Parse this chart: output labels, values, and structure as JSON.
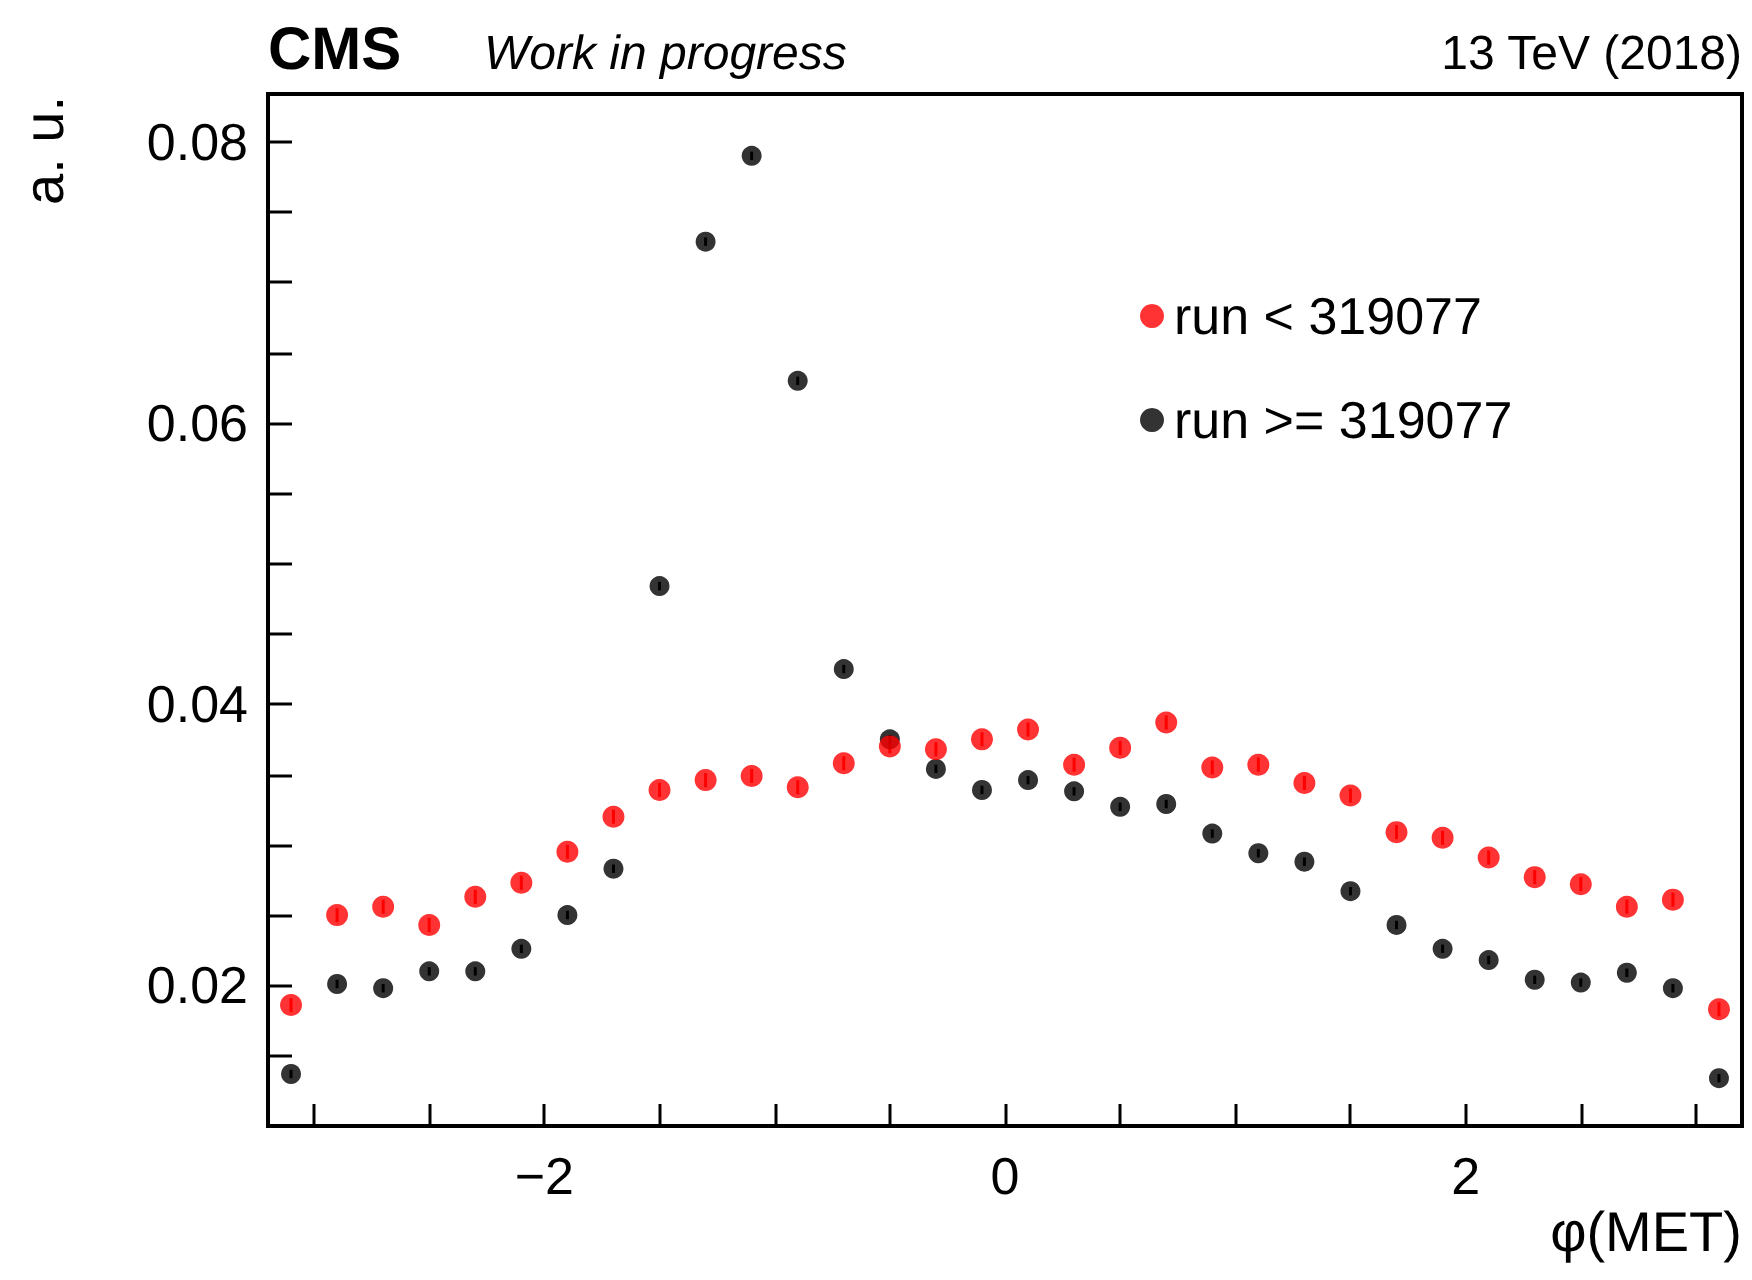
{
  "chart_data": {
    "type": "scatter",
    "title": "CMS",
    "subtitle": "Work in progress",
    "annotations": [
      "13 TeV (2018)"
    ],
    "xlabel": "φ(MET)",
    "ylabel": "a. u.",
    "x": [
      -3.1,
      -2.9,
      -2.7,
      -2.5,
      -2.3,
      -2.1,
      -1.9,
      -1.7,
      -1.5,
      -1.3,
      -1.1,
      -0.9,
      -0.7,
      -0.5,
      -0.3,
      -0.1,
      0.1,
      0.3,
      0.5,
      0.7,
      0.9,
      1.1,
      1.3,
      1.5,
      1.7,
      1.9,
      2.1,
      2.3,
      2.5,
      2.7,
      2.9,
      3.1
    ],
    "series": [
      {
        "name": "run < 319077",
        "color": "#ff0000",
        "values": [
          0.0186,
          0.025,
          0.0256,
          0.0243,
          0.0263,
          0.0273,
          0.0295,
          0.032,
          0.0339,
          0.0346,
          0.0349,
          0.0341,
          0.0358,
          0.037,
          0.0368,
          0.0375,
          0.0382,
          0.0357,
          0.0369,
          0.0387,
          0.0355,
          0.0357,
          0.0344,
          0.0335,
          0.0309,
          0.0305,
          0.0291,
          0.0277,
          0.0272,
          0.0256,
          0.0261,
          0.0183
        ],
        "errors": [
          0.0005,
          0.0005,
          0.0005,
          0.0005,
          0.0005,
          0.0005,
          0.0005,
          0.0005,
          0.0005,
          0.0005,
          0.0005,
          0.0005,
          0.0005,
          0.0005,
          0.0005,
          0.0005,
          0.0005,
          0.0005,
          0.0005,
          0.0005,
          0.0005,
          0.0005,
          0.0005,
          0.0005,
          0.0005,
          0.0005,
          0.0005,
          0.0005,
          0.0005,
          0.0005,
          0.0005,
          0.0005
        ]
      },
      {
        "name": "run >= 319077",
        "color": "#000000",
        "values": [
          0.0137,
          0.0201,
          0.0198,
          0.021,
          0.021,
          0.0226,
          0.025,
          0.0283,
          0.0484,
          0.0729,
          0.079,
          0.063,
          0.0425,
          0.0375,
          0.0354,
          0.0339,
          0.0346,
          0.0338,
          0.0327,
          0.0329,
          0.0308,
          0.0294,
          0.0288,
          0.0267,
          0.0243,
          0.0226,
          0.0218,
          0.0204,
          0.0202,
          0.0209,
          0.0198,
          0.0134
        ],
        "errors": [
          0.0003,
          0.0003,
          0.0003,
          0.0003,
          0.0003,
          0.0003,
          0.0003,
          0.0003,
          0.0003,
          0.0003,
          0.0003,
          0.0003,
          0.0003,
          0.0003,
          0.0003,
          0.0003,
          0.0003,
          0.0003,
          0.0003,
          0.0003,
          0.0003,
          0.0003,
          0.0003,
          0.0003,
          0.0003,
          0.0003,
          0.0003,
          0.0003,
          0.0003,
          0.0003,
          0.0003,
          0.0003
        ]
      }
    ],
    "xlim": [
      -3.2,
      3.2
    ],
    "xticks": [
      {
        "value": -3,
        "label": null
      },
      {
        "value": -2.5,
        "label": null
      },
      -2,
      {
        "value": -1.5,
        "label": null
      },
      {
        "value": -1,
        "label": null
      },
      {
        "value": -0.5,
        "label": null
      },
      0,
      {
        "value": 0.5,
        "label": null
      },
      {
        "value": 1,
        "label": null
      },
      {
        "value": 1.5,
        "label": null
      },
      2,
      {
        "value": 2.5,
        "label": null
      },
      {
        "value": 3,
        "label": null
      }
    ],
    "ylim": [
      0.01,
      0.0834
    ],
    "yticks": [
      {
        "value": 0.01,
        "label": null
      },
      {
        "value": 0.015,
        "label": null
      },
      0.02,
      {
        "value": 0.025,
        "label": null
      },
      {
        "value": 0.03,
        "label": null
      },
      {
        "value": 0.035,
        "label": null
      },
      0.04,
      {
        "value": 0.045,
        "label": null
      },
      {
        "value": 0.05,
        "label": null
      },
      {
        "value": 0.055,
        "label": null
      },
      0.06,
      {
        "value": 0.065,
        "label": null
      },
      {
        "value": 0.07,
        "label": null
      },
      {
        "value": 0.075,
        "label": null
      },
      0.08
    ],
    "grid": false,
    "legend": "top right",
    "marker": "circle"
  }
}
